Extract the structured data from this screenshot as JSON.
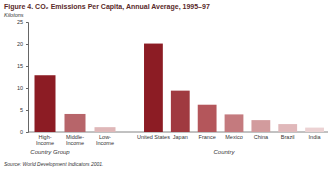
{
  "chart_data": {
    "type": "bar",
    "title": "Figure 4. CO₂ Emissions Per Capita, Annual Average, 1995–97",
    "y_label": "Kilotons",
    "source": "Source: World Development Indicators 2001.",
    "groups": [
      {
        "label": "Country Group",
        "categories": [
          "High-Income",
          "Middle-Income",
          "Low-Income"
        ],
        "values": [
          12.9,
          4.1,
          1.1
        ],
        "colors": [
          "#8c1c24",
          "#b7656a",
          "#dfb7b8"
        ]
      },
      {
        "label": "Country",
        "categories": [
          "United States",
          "Japan",
          "France",
          "Mexico",
          "China",
          "Brazil",
          "India"
        ],
        "values": [
          20.1,
          9.4,
          6.2,
          4.0,
          2.7,
          1.8,
          1.0
        ],
        "colors": [
          "#8c1c24",
          "#a03a40",
          "#b4565b",
          "#c47a7e",
          "#d29b9d",
          "#e0b8ba",
          "#ecd2d3"
        ]
      }
    ],
    "ylim": [
      0,
      25
    ],
    "yticks": [
      0,
      5,
      10,
      15,
      20,
      25
    ],
    "grid": false
  }
}
